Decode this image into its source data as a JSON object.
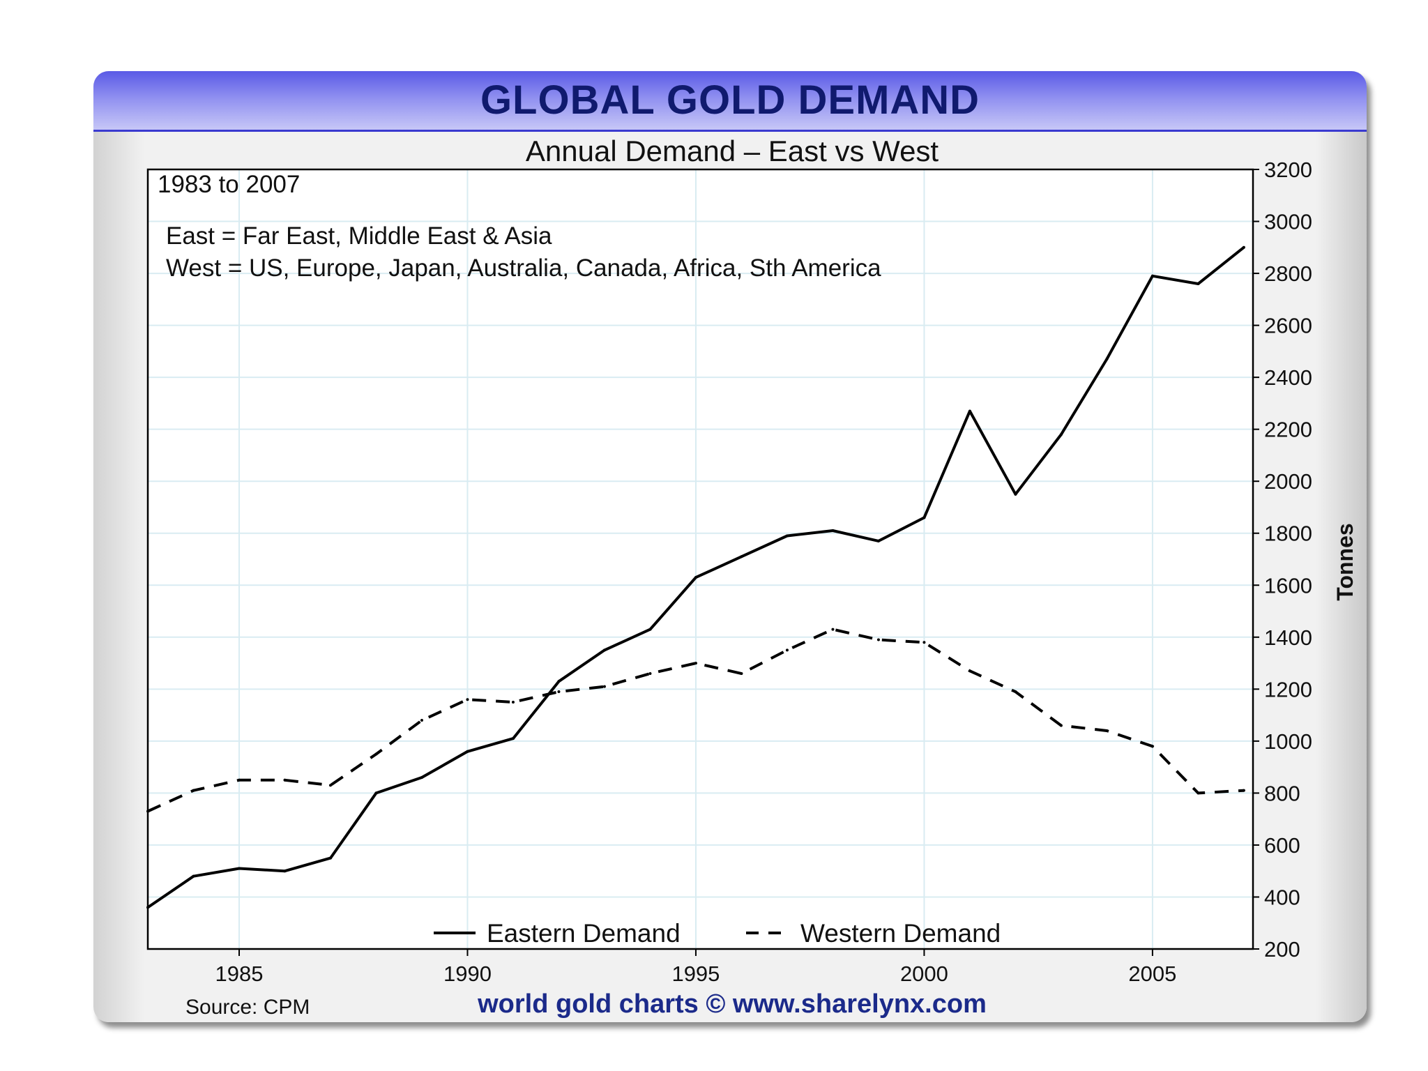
{
  "chart_data": {
    "type": "line",
    "title": "GLOBAL GOLD DEMAND",
    "subtitle": "Annual Demand – East vs West",
    "notes": [
      "1983 to 2007",
      "East = Far East, Middle East & Asia",
      "West = US, Europe, Japan, Australia, Canada, Africa, Sth America"
    ],
    "ylabel": "Tonnes",
    "xlabel": "",
    "ylim": [
      200,
      3200
    ],
    "xlim": [
      1983,
      2007.2
    ],
    "y_ticks": [
      200,
      400,
      600,
      800,
      1000,
      1200,
      1400,
      1600,
      1800,
      2000,
      2200,
      2400,
      2600,
      2800,
      3000,
      3200
    ],
    "x_ticks": [
      1985,
      1990,
      1995,
      2000,
      2005
    ],
    "y_axis_position": "right",
    "grid": true,
    "legend_position": "bottom-center",
    "x": [
      1983,
      1984,
      1985,
      1986,
      1987,
      1988,
      1989,
      1990,
      1991,
      1992,
      1993,
      1994,
      1995,
      1996,
      1997,
      1998,
      1999,
      2000,
      2001,
      2002,
      2003,
      2004,
      2005,
      2006,
      2007
    ],
    "series": [
      {
        "name": "Eastern Demand",
        "style": "solid",
        "color": "#000000",
        "values": [
          360,
          480,
          510,
          500,
          550,
          800,
          860,
          960,
          1010,
          1230,
          1350,
          1430,
          1630,
          1710,
          1790,
          1810,
          1770,
          1860,
          2270,
          1950,
          2180,
          2470,
          2790,
          2760,
          2900
        ]
      },
      {
        "name": "Western Demand",
        "style": "dashed",
        "color": "#000000",
        "values": [
          730,
          810,
          850,
          850,
          830,
          950,
          1080,
          1160,
          1150,
          1190,
          1210,
          1260,
          1300,
          1260,
          1350,
          1430,
          1390,
          1380,
          1270,
          1190,
          1060,
          1040,
          980,
          800,
          810
        ]
      }
    ],
    "source": "Source: CPM",
    "credit": "world gold charts © www.sharelynx.com"
  },
  "colors": {
    "title_bar": "#7b7bec",
    "title_text": "#101a6e",
    "credit_text": "#1b2a8a",
    "grid": "#d9ecf2",
    "frame": "#f1f1f1"
  }
}
